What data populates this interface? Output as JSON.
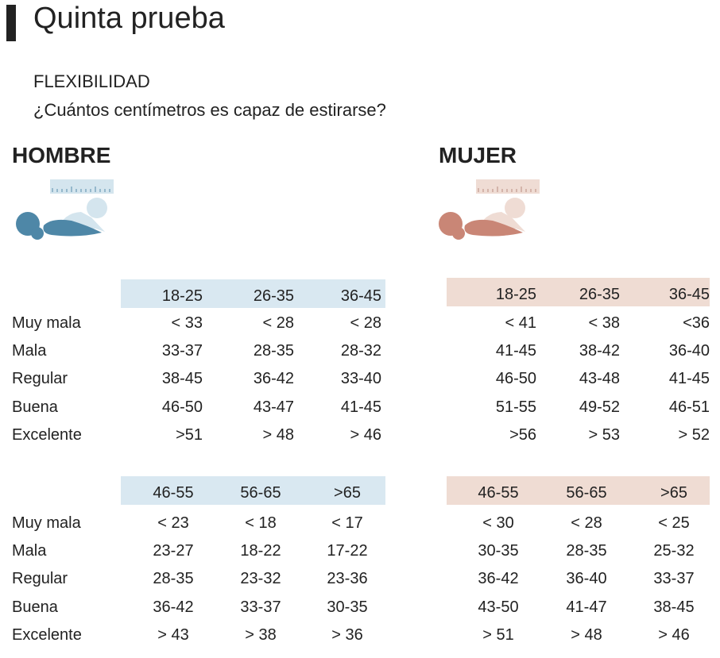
{
  "title": "Quinta prueba",
  "subtitle": "FLEXIBILIDAD",
  "question": "¿Cuántos centímetros es capaz de estirarse?",
  "colors": {
    "men_band": "#d9e8f1",
    "women_band": "#efdcd3",
    "men_icon": "#4e87a7",
    "men_icon_light": "#d4e5ee",
    "women_icon": "#c98676",
    "women_icon_light": "#efdcd4"
  },
  "men": {
    "label": "HOMBRE",
    "icon": "person-stretching-icon",
    "tables": [
      {
        "headers": [
          "18-25",
          "26-35",
          "36-45"
        ],
        "rows": [
          {
            "label": "Muy mala",
            "values": [
              "< 33",
              "< 28",
              "< 28"
            ]
          },
          {
            "label": "Mala",
            "values": [
              "33-37",
              "28-35",
              "28-32"
            ]
          },
          {
            "label": "Regular",
            "values": [
              "38-45",
              "36-42",
              "33-40"
            ]
          },
          {
            "label": "Buena",
            "values": [
              "46-50",
              "43-47",
              "41-45"
            ]
          },
          {
            "label": "Excelente",
            "values": [
              ">51",
              "> 48",
              "> 46"
            ]
          }
        ]
      },
      {
        "headers": [
          "46-55",
          "56-65",
          ">65"
        ],
        "rows": [
          {
            "label": "Muy mala",
            "values": [
              "< 23",
              "< 18",
              "< 17"
            ]
          },
          {
            "label": "Mala",
            "values": [
              "23-27",
              "18-22",
              "17-22"
            ]
          },
          {
            "label": "Regular",
            "values": [
              "28-35",
              "23-32",
              "23-36"
            ]
          },
          {
            "label": "Buena",
            "values": [
              "36-42",
              "33-37",
              "30-35"
            ]
          },
          {
            "label": "Excelente",
            "values": [
              "> 43",
              "> 38",
              "> 36"
            ]
          }
        ]
      }
    ]
  },
  "women": {
    "label": "MUJER",
    "icon": "person-stretching-icon",
    "tables": [
      {
        "headers": [
          "18-25",
          "26-35",
          "36-45"
        ],
        "rows": [
          {
            "values": [
              "< 41",
              "< 38",
              "<36"
            ]
          },
          {
            "values": [
              "41-45",
              "38-42",
              "36-40"
            ]
          },
          {
            "values": [
              "46-50",
              "43-48",
              "41-45"
            ]
          },
          {
            "values": [
              "51-55",
              "49-52",
              "46-51"
            ]
          },
          {
            "values": [
              ">56",
              "> 53",
              "> 52"
            ]
          }
        ]
      },
      {
        "headers": [
          "46-55",
          "56-65",
          ">65"
        ],
        "rows": [
          {
            "values": [
              "< 30",
              "< 28",
              "< 25"
            ]
          },
          {
            "values": [
              "30-35",
              "28-35",
              "25-32"
            ]
          },
          {
            "values": [
              "36-42",
              "36-40",
              "33-37"
            ]
          },
          {
            "values": [
              "43-50",
              "41-47",
              "38-45"
            ]
          },
          {
            "values": [
              "> 51",
              "> 48",
              "> 46"
            ]
          }
        ]
      }
    ]
  }
}
